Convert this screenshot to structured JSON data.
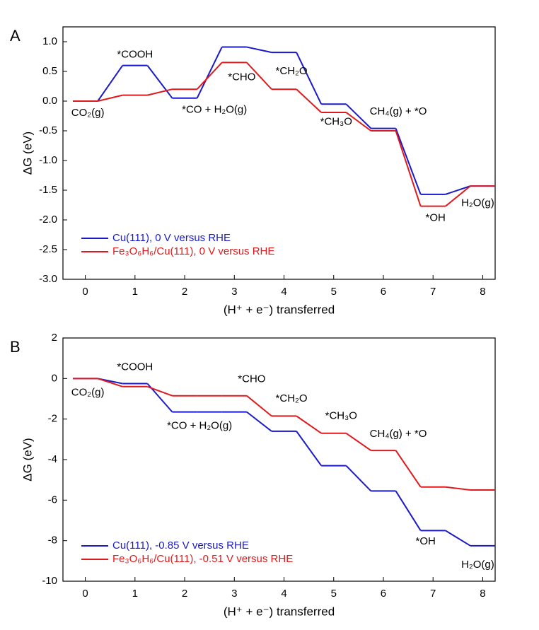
{
  "chart_data": [
    {
      "type": "step",
      "label": "A",
      "xlabel": "(H⁺ + e⁻) transferred",
      "ylabel": "ΔG (eV)",
      "x": [
        0,
        1,
        2,
        3,
        4,
        5,
        6,
        7,
        8
      ],
      "xlim": [
        -0.45,
        8.25
      ],
      "xticks": [
        0,
        1,
        2,
        3,
        4,
        5,
        6,
        7,
        8
      ],
      "ylim": [
        -3,
        1.25
      ],
      "yticks": [
        {
          "value": 1,
          "label": "1.0"
        },
        0.5,
        {
          "value": 0,
          "label": "0.0"
        },
        -0.5,
        {
          "value": -1,
          "label": "-1.0"
        },
        -1.5,
        {
          "value": -2,
          "label": "-2.0"
        },
        -2.5,
        {
          "value": -3,
          "label": "-3.0"
        }
      ],
      "legend": "lower left",
      "series": [
        {
          "name": "Cu(111), 0 V versus RHE",
          "color": "#1a1ac8",
          "values": [
            0,
            0.6,
            0.05,
            0.91,
            0.82,
            -0.05,
            -0.46,
            -1.57,
            -1.43
          ]
        },
        {
          "name": "Fe₃O₆H₆/Cu(111), 0 V versus RHE",
          "color": "#e0191c",
          "values": [
            0,
            0.1,
            0.2,
            0.65,
            0.2,
            -0.19,
            -0.5,
            -1.77,
            -1.43
          ]
        }
      ],
      "annotations": [
        "CO₂(g)",
        "*COOH",
        "*CO + H₂O(g)",
        "*CHO",
        "*CH₂O",
        "*CH₃O",
        "CH₄(g) + *O",
        "*OH",
        "H₂O(g)"
      ]
    },
    {
      "type": "step",
      "label": "B",
      "xlabel": "(H⁺ + e⁻) transferred",
      "ylabel": "ΔG (eV)",
      "x": [
        0,
        1,
        2,
        3,
        4,
        5,
        6,
        7,
        8
      ],
      "xlim": [
        -0.45,
        8.25
      ],
      "xticks": [
        0,
        1,
        2,
        3,
        4,
        5,
        6,
        7,
        8
      ],
      "ylim": [
        -10,
        2
      ],
      "yticks": [
        2,
        0,
        -2,
        -4,
        -6,
        -8,
        -10
      ],
      "legend": "lower left",
      "series": [
        {
          "name": "Cu(111), -0.85 V versus RHE",
          "color": "#1a1ac8",
          "values": [
            0,
            -0.25,
            -1.65,
            -1.65,
            -2.6,
            -4.3,
            -5.55,
            -7.5,
            -8.25
          ]
        },
        {
          "name": "Fe₃O₆H₆/Cu(111), -0.51 V versus RHE",
          "color": "#e0191c",
          "values": [
            0,
            -0.4,
            -0.85,
            -0.85,
            -1.85,
            -2.7,
            -3.55,
            -5.35,
            -5.5
          ]
        }
      ],
      "annotations": [
        "CO₂(g)",
        "*COOH",
        "*CO + H₂O(g)",
        "*CHO",
        "*CH₂O",
        "*CH₃O",
        "CH₄(g) + *O",
        "*OH",
        "H₂O(g)"
      ]
    }
  ]
}
